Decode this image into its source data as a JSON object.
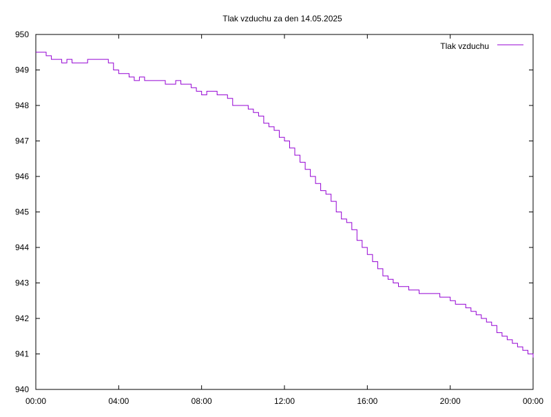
{
  "chart_data": {
    "type": "line",
    "title": "Tlak vzduchu za den 14.05.2025",
    "xlabel": "",
    "ylabel": "",
    "xlim": [
      0,
      24
    ],
    "ylim": [
      940,
      950
    ],
    "grid": false,
    "legend_position": "top-right",
    "x_ticks": [
      {
        "value": 0,
        "label": "00:00"
      },
      {
        "value": 4,
        "label": "04:00"
      },
      {
        "value": 8,
        "label": "08:00"
      },
      {
        "value": 12,
        "label": "12:00"
      },
      {
        "value": 16,
        "label": "16:00"
      },
      {
        "value": 20,
        "label": "20:00"
      },
      {
        "value": 24,
        "label": "00:00"
      }
    ],
    "y_ticks": [
      {
        "value": 940,
        "label": "940"
      },
      {
        "value": 941,
        "label": "941"
      },
      {
        "value": 942,
        "label": "942"
      },
      {
        "value": 943,
        "label": "943"
      },
      {
        "value": 944,
        "label": "944"
      },
      {
        "value": 945,
        "label": "945"
      },
      {
        "value": 946,
        "label": "946"
      },
      {
        "value": 947,
        "label": "947"
      },
      {
        "value": 948,
        "label": "948"
      },
      {
        "value": 949,
        "label": "949"
      },
      {
        "value": 950,
        "label": "950"
      }
    ],
    "series": [
      {
        "name": "Tlak vzduchu",
        "color": "#9400d3",
        "x": [
          0,
          0.25,
          0.5,
          0.75,
          1.0,
          1.25,
          1.5,
          1.75,
          2.0,
          2.25,
          2.5,
          2.75,
          3.0,
          3.25,
          3.5,
          3.75,
          4.0,
          4.25,
          4.5,
          4.75,
          5.0,
          5.25,
          5.5,
          5.75,
          6.0,
          6.25,
          6.5,
          6.75,
          7.0,
          7.25,
          7.5,
          7.75,
          8.0,
          8.25,
          8.5,
          8.75,
          9.0,
          9.25,
          9.5,
          9.75,
          10.0,
          10.25,
          10.5,
          10.75,
          11.0,
          11.25,
          11.5,
          11.75,
          12.0,
          12.25,
          12.5,
          12.75,
          13.0,
          13.25,
          13.5,
          13.75,
          14.0,
          14.25,
          14.5,
          14.75,
          15.0,
          15.25,
          15.5,
          15.75,
          16.0,
          16.25,
          16.5,
          16.75,
          17.0,
          17.25,
          17.5,
          17.75,
          18.0,
          18.25,
          18.5,
          18.75,
          19.0,
          19.25,
          19.5,
          19.75,
          20.0,
          20.25,
          20.5,
          20.75,
          21.0,
          21.25,
          21.5,
          21.75,
          22.0,
          22.25,
          22.5,
          22.75,
          23.0,
          23.25,
          23.5,
          23.75,
          24.0
        ],
        "y": [
          949.5,
          949.5,
          949.4,
          949.3,
          949.3,
          949.2,
          949.3,
          949.2,
          949.2,
          949.2,
          949.3,
          949.3,
          949.3,
          949.3,
          949.2,
          949.0,
          948.9,
          948.9,
          948.8,
          948.7,
          948.8,
          948.7,
          948.7,
          948.7,
          948.7,
          948.6,
          948.6,
          948.7,
          948.6,
          948.6,
          948.5,
          948.4,
          948.3,
          948.4,
          948.4,
          948.3,
          948.3,
          948.2,
          948.0,
          948.0,
          948.0,
          947.9,
          947.8,
          947.7,
          947.5,
          947.4,
          947.3,
          947.1,
          947.0,
          946.8,
          946.6,
          946.4,
          946.2,
          946.0,
          945.8,
          945.6,
          945.5,
          945.3,
          945.0,
          944.8,
          944.7,
          944.5,
          944.2,
          944.0,
          943.8,
          943.6,
          943.4,
          943.2,
          943.1,
          943.0,
          942.9,
          942.9,
          942.8,
          942.8,
          942.7,
          942.7,
          942.7,
          942.7,
          942.6,
          942.6,
          942.5,
          942.4,
          942.4,
          942.3,
          942.2,
          942.1,
          942.0,
          941.9,
          941.8,
          941.6,
          941.5,
          941.4,
          941.3,
          941.2,
          941.1,
          941.0,
          940.9
        ]
      }
    ]
  }
}
